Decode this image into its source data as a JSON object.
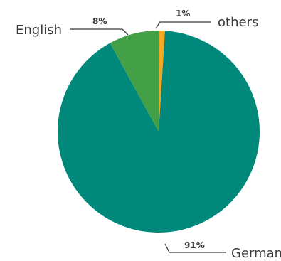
{
  "chart_data": {
    "type": "pie",
    "slices": [
      {
        "label": "German",
        "value": 91,
        "pct_label": "91%",
        "color": "#00897b"
      },
      {
        "label": "English",
        "value": 8,
        "pct_label": "8%",
        "color": "#43a047"
      },
      {
        "label": "others",
        "value": 1,
        "pct_label": "1%",
        "color": "#f5a623"
      }
    ],
    "start": "top",
    "direction": "clockwise",
    "legend": "none"
  }
}
